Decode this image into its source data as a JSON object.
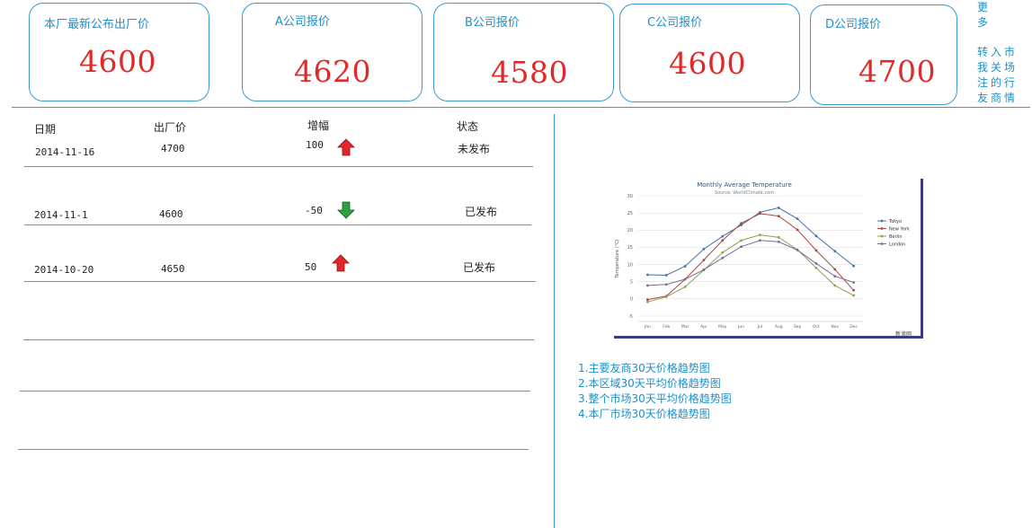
{
  "cards": {
    "own": {
      "label": "本厂最新公布出厂价",
      "value": "4600"
    },
    "a": {
      "label": "A公司报价",
      "value": "4620"
    },
    "b": {
      "label": "B公司报价",
      "value": "4580"
    },
    "c": {
      "label": "C公司报价",
      "value": "4600"
    },
    "d": {
      "label": "D公司报价",
      "value": "4700"
    }
  },
  "side_links": {
    "more": [
      "更",
      "多"
    ],
    "join": [
      "转入市",
      "我关场",
      "注的行",
      "友商情"
    ]
  },
  "table": {
    "headers": {
      "date": "日期",
      "price": "出厂价",
      "change": "增幅",
      "status": "状态"
    },
    "rows": [
      {
        "date": "2014-11-16",
        "price": "4700",
        "change": "100",
        "direction": "up",
        "status": "未发布"
      },
      {
        "date": "2014-11-1",
        "price": "4600",
        "change": "-50",
        "direction": "down",
        "status": "已发布"
      },
      {
        "date": "2014-10-20",
        "price": "4650",
        "change": "50",
        "direction": "up",
        "status": "已发布"
      }
    ]
  },
  "chart_links": [
    "1.主要友商30天价格趋势图",
    "2.本区域30天平均价格趋势图",
    "3.整个市场30天平均价格趋势图",
    "4.本厂市场30天价格趋势图"
  ],
  "chart_watermark": "新浪网",
  "colors": {
    "accent": "#1f8fc8",
    "price": "#e02a2a",
    "up_arrow": "#e3262a",
    "down_arrow": "#2ea043"
  },
  "chart_data": {
    "type": "line",
    "title": "Monthly Average Temperature",
    "subtitle": "Source: WorldClimate.com",
    "ylabel": "Temperature (°C)",
    "xlabel": "",
    "categories": [
      "Jan",
      "Feb",
      "Mar",
      "Apr",
      "May",
      "Jun",
      "Jul",
      "Aug",
      "Sep",
      "Oct",
      "Nov",
      "Dec"
    ],
    "ylim": [
      -5,
      30
    ],
    "yticks": [
      -5,
      0,
      5,
      10,
      15,
      20,
      25,
      30
    ],
    "grid": true,
    "legend": "right",
    "series": [
      {
        "name": "Tokyo",
        "color": "#4572a7",
        "values": [
          7.0,
          6.9,
          9.5,
          14.5,
          18.2,
          21.5,
          25.2,
          26.5,
          23.3,
          18.3,
          13.9,
          9.6
        ]
      },
      {
        "name": "New York",
        "color": "#aa4643",
        "values": [
          -0.2,
          0.8,
          5.7,
          11.3,
          17.0,
          22.0,
          24.8,
          24.1,
          20.1,
          14.1,
          8.6,
          2.5
        ]
      },
      {
        "name": "Berlin",
        "color": "#89a54e",
        "values": [
          -0.9,
          0.6,
          3.5,
          8.4,
          13.5,
          17.0,
          18.6,
          17.9,
          14.3,
          9.0,
          3.9,
          1.0
        ]
      },
      {
        "name": "London",
        "color": "#80699b",
        "values": [
          3.9,
          4.2,
          5.7,
          8.5,
          11.9,
          15.2,
          17.0,
          16.6,
          14.2,
          10.3,
          6.6,
          4.8
        ]
      }
    ]
  }
}
